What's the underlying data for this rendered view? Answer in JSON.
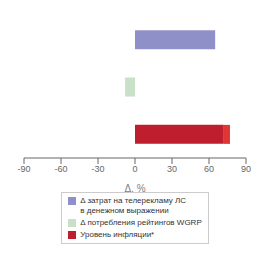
{
  "chart_data": {
    "type": "bar",
    "orientation": "horizontal",
    "stacked": true,
    "categories": [
      null,
      null,
      null
    ],
    "xlabel": "Δ, %",
    "xlim": [
      -90,
      90
    ],
    "xticks": [
      -90,
      -60,
      -30,
      0,
      30,
      60,
      90
    ],
    "tick_labels": "x",
    "grid": false,
    "legend": "bottom",
    "series": [
      {
        "name": "Δ затрат на телерекламу ЛС\nв денежном выражении",
        "color": "#9090c8",
        "values": [
          65,
          null,
          null
        ]
      },
      {
        "name": "Δ потребления рейтингов WGRP",
        "color": "#c8dfc8",
        "values": [
          null,
          -8,
          null
        ]
      },
      {
        "name": "Уровень инфляции*",
        "color": "#be1e2d",
        "values": [
          null,
          null,
          72
        ]
      },
      {
        "color": "#e03535",
        "values": [
          null,
          null,
          5
        ]
      }
    ]
  }
}
